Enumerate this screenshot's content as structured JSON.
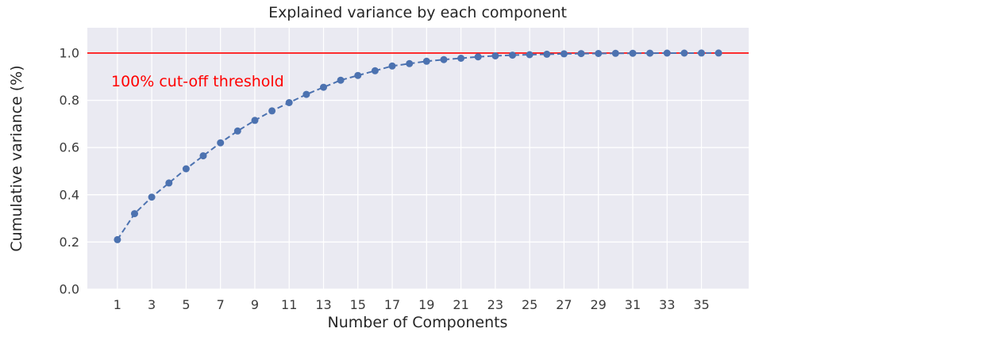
{
  "figure": {
    "background": "#ffffff"
  },
  "chart_data": {
    "type": "line",
    "title": "Explained variance by each component",
    "xlabel": "Number of Components",
    "ylabel": "Cumulative variance (%)",
    "x": [
      1,
      2,
      3,
      4,
      5,
      6,
      7,
      8,
      9,
      10,
      11,
      12,
      13,
      14,
      15,
      16,
      17,
      18,
      19,
      20,
      21,
      22,
      23,
      24,
      25,
      26,
      27,
      28,
      29,
      30,
      31,
      32,
      33,
      34,
      35,
      36
    ],
    "values": [
      0.21,
      0.32,
      0.39,
      0.45,
      0.51,
      0.565,
      0.62,
      0.67,
      0.715,
      0.755,
      0.79,
      0.825,
      0.855,
      0.885,
      0.905,
      0.925,
      0.945,
      0.955,
      0.965,
      0.972,
      0.978,
      0.984,
      0.988,
      0.991,
      0.993,
      0.995,
      0.9965,
      0.9975,
      0.998,
      0.9985,
      0.999,
      0.9993,
      0.9995,
      0.9997,
      0.9999,
      1.0
    ],
    "xticks": [
      1,
      3,
      5,
      7,
      9,
      11,
      13,
      15,
      17,
      19,
      21,
      23,
      25,
      27,
      29,
      31,
      33,
      35
    ],
    "yticks": [
      0,
      0.2,
      0.4,
      0.6,
      0.8,
      1.0
    ],
    "xlim": [
      -0.75,
      37.75
    ],
    "ylim": [
      0,
      1.107
    ],
    "grid": true,
    "line_style": "dashed",
    "marker": "circle",
    "threshold": {
      "y": 1.0,
      "label": "100% cut-off threshold"
    },
    "colors": {
      "line": "#4c72b0",
      "marker": "#4c72b0",
      "threshold": "#ff0000",
      "annotation": "#ff0000",
      "plot_bg": "#eaeaf2",
      "grid": "#ffffff"
    }
  }
}
